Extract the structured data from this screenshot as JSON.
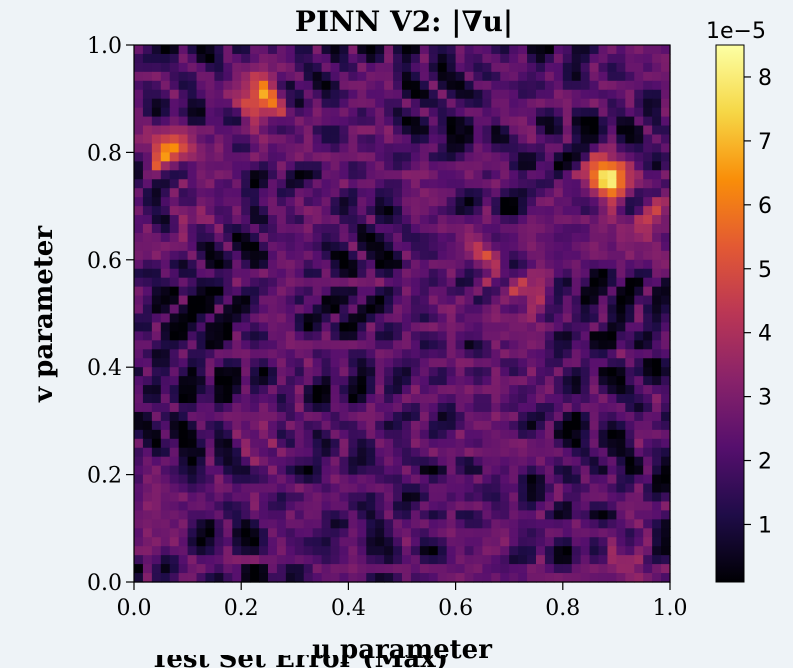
{
  "chart_data": {
    "type": "heatmap",
    "title": "PINN V2: |∇u|",
    "xlabel": "u parameter",
    "ylabel": "v parameter",
    "xlim": [
      0.0,
      1.0
    ],
    "ylim": [
      0.0,
      1.0
    ],
    "xticks": [
      "0.0",
      "0.2",
      "0.4",
      "0.6",
      "0.8",
      "1.0"
    ],
    "yticks": [
      "0.0",
      "0.2",
      "0.4",
      "0.6",
      "0.8",
      "1.0"
    ],
    "colormap": "inferno",
    "colorbar": {
      "range": [
        0.1,
        8.5
      ],
      "ticks": [
        "1",
        "2",
        "3",
        "4",
        "5",
        "6",
        "7",
        "8"
      ],
      "offset_label": "1e−5"
    },
    "hotspots": [
      {
        "u": 0.88,
        "v": 0.75,
        "value": 8.3
      },
      {
        "u": 0.24,
        "v": 0.9,
        "value": 7.0
      },
      {
        "u": 0.06,
        "v": 0.8,
        "value": 6.3
      },
      {
        "u": 0.97,
        "v": 0.68,
        "value": 4.8
      },
      {
        "u": 0.65,
        "v": 0.6,
        "value": 4.6
      },
      {
        "u": 0.73,
        "v": 0.54,
        "value": 4.8
      },
      {
        "u": 0.92,
        "v": 0.05,
        "value": 3.8
      },
      {
        "u": 0.22,
        "v": 0.25,
        "value": 3.6
      },
      {
        "u": 0.12,
        "v": 0.67,
        "value": 3.4
      }
    ],
    "partial_text_below": "Test Set Error (Max)"
  },
  "colors": {
    "background": "#eef3f7",
    "text": "#000000"
  }
}
